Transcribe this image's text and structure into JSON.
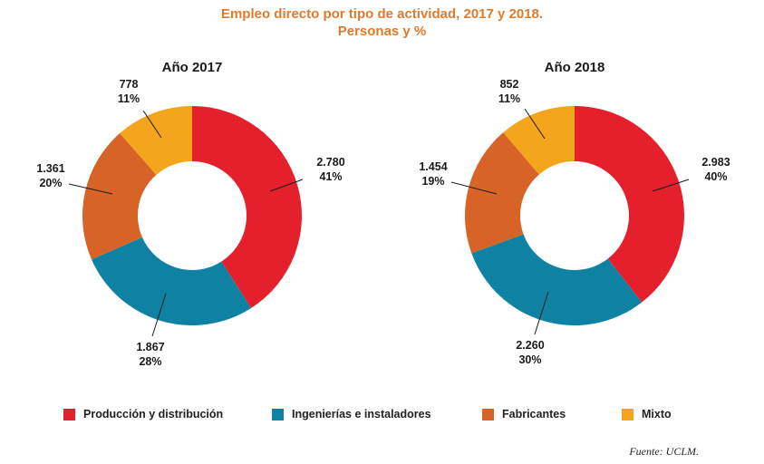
{
  "header": {
    "title_line1": "Empleo directo por tipo de actividad, 2017 y 2018.",
    "title_line2": "Personas y %"
  },
  "chart_data": [
    {
      "type": "pie",
      "donut": true,
      "title": "Año 2017",
      "categories": [
        "Producción y distribución",
        "Ingenierías e instaladores",
        "Fabricantes",
        "Mixto"
      ],
      "values": [
        2780,
        1867,
        1361,
        778
      ],
      "value_labels": [
        "2.780",
        "1.867",
        "1.361",
        "778"
      ],
      "percent_labels": [
        "41%",
        "28%",
        "20%",
        "11%"
      ]
    },
    {
      "type": "pie",
      "donut": true,
      "title": "Año 2018",
      "categories": [
        "Producción y distribución",
        "Ingenierías e instaladores",
        "Fabricantes",
        "Mixto"
      ],
      "values": [
        2983,
        2260,
        1454,
        852
      ],
      "value_labels": [
        "2.983",
        "2.260",
        "1.454",
        "852"
      ],
      "percent_labels": [
        "40%",
        "30%",
        "19%",
        "11%"
      ]
    }
  ],
  "legend": {
    "items": [
      {
        "label": "Producción y distribución",
        "color": "#e3202b"
      },
      {
        "label": "Ingenierías e instaladores",
        "color": "#0f82a3"
      },
      {
        "label": "Fabricantes",
        "color": "#d86327"
      },
      {
        "label": "Mixto",
        "color": "#f4a51c"
      }
    ]
  },
  "source": "Fuente: UCLM."
}
